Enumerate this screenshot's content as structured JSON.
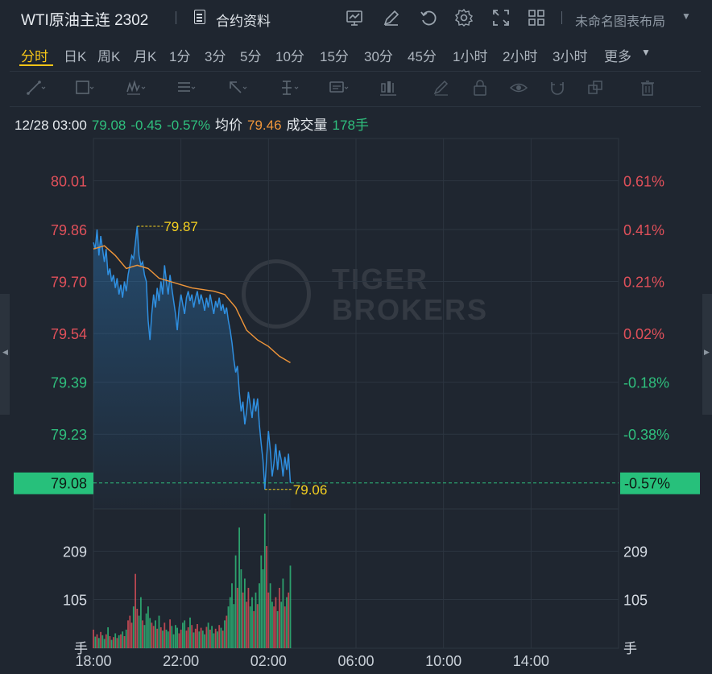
{
  "header": {
    "title": "WTI原油主连 2302",
    "contract_info_label": "合约资料",
    "layout_label": "未命名图表布局"
  },
  "timeframes": [
    "分时",
    "日K",
    "周K",
    "月K",
    "1分",
    "3分",
    "5分",
    "10分",
    "15分",
    "30分",
    "45分",
    "1小时",
    "2小时",
    "3小时",
    "更多"
  ],
  "active_timeframe": "分时",
  "info": {
    "datetime": "12/28 03:00",
    "price": "79.08",
    "change": "-0.45",
    "change_pct": "-0.57%",
    "avg_label": "均价",
    "avg_value": "79.46",
    "volume_label": "成交量",
    "volume_value": "178手"
  },
  "watermark": {
    "line1": "TIGER",
    "line2": "BROKERS"
  },
  "colors": {
    "up": "#e0505a",
    "down": "#2fbf7d",
    "price_line": "#2f8fe0",
    "avg_line": "#f0963a",
    "highlight": "#f5d020",
    "background": "#1f2630",
    "grid": "#2c3540"
  },
  "chart_data": {
    "type": "line",
    "x_ticks": [
      "18:00",
      "22:00",
      "02:00",
      "06:00",
      "10:00",
      "14:00"
    ],
    "y_left_ticks": [
      "80.01",
      "79.86",
      "79.70",
      "79.54",
      "79.39",
      "79.23"
    ],
    "y_right_ticks": [
      "0.61%",
      "0.41%",
      "0.21%",
      "0.02%",
      "-0.18%",
      "-0.38%"
    ],
    "ylim": [
      79.0,
      80.14
    ],
    "prev_close": 79.53,
    "current_label": "79.08",
    "current_pct_label": "-0.57%",
    "high_label": "79.87",
    "low_label": "79.06",
    "volume_ticks": [
      "209",
      "105"
    ],
    "volume_unit": "手",
    "volume_max": 300,
    "price_series": [
      [
        "18:00",
        79.82
      ],
      [
        "18:05",
        79.8
      ],
      [
        "18:10",
        79.86
      ],
      [
        "18:15",
        79.78
      ],
      [
        "18:20",
        79.84
      ],
      [
        "18:25",
        79.8
      ],
      [
        "18:30",
        79.76
      ],
      [
        "18:35",
        79.8
      ],
      [
        "18:40",
        79.72
      ],
      [
        "18:45",
        79.74
      ],
      [
        "18:50",
        79.7
      ],
      [
        "18:55",
        79.72
      ],
      [
        "19:00",
        79.68
      ],
      [
        "19:05",
        79.71
      ],
      [
        "19:10",
        79.66
      ],
      [
        "19:15",
        79.69
      ],
      [
        "19:20",
        79.65
      ],
      [
        "19:25",
        79.7
      ],
      [
        "19:30",
        79.67
      ],
      [
        "19:35",
        79.72
      ],
      [
        "19:40",
        79.75
      ],
      [
        "19:45",
        79.78
      ],
      [
        "19:50",
        79.77
      ],
      [
        "19:55",
        79.82
      ],
      [
        "20:00",
        79.87
      ],
      [
        "20:05",
        79.78
      ],
      [
        "20:10",
        79.75
      ],
      [
        "20:15",
        79.76
      ],
      [
        "20:20",
        79.72
      ],
      [
        "20:25",
        79.7
      ],
      [
        "20:30",
        79.58
      ],
      [
        "20:35",
        79.52
      ],
      [
        "20:40",
        79.6
      ],
      [
        "20:45",
        79.66
      ],
      [
        "20:50",
        79.62
      ],
      [
        "20:55",
        79.68
      ],
      [
        "21:00",
        79.64
      ],
      [
        "21:05",
        79.7
      ],
      [
        "21:10",
        79.66
      ],
      [
        "21:15",
        79.75
      ],
      [
        "21:20",
        79.7
      ],
      [
        "21:25",
        79.66
      ],
      [
        "21:30",
        79.72
      ],
      [
        "21:35",
        79.68
      ],
      [
        "21:40",
        79.64
      ],
      [
        "21:45",
        79.6
      ],
      [
        "21:50",
        79.55
      ],
      [
        "21:55",
        79.62
      ],
      [
        "22:00",
        79.66
      ],
      [
        "22:05",
        79.63
      ],
      [
        "22:10",
        79.6
      ],
      [
        "22:15",
        79.65
      ],
      [
        "22:20",
        79.67
      ],
      [
        "22:25",
        79.64
      ],
      [
        "22:30",
        79.66
      ],
      [
        "22:35",
        79.62
      ],
      [
        "22:40",
        79.65
      ],
      [
        "22:45",
        79.67
      ],
      [
        "22:50",
        79.63
      ],
      [
        "22:55",
        79.66
      ],
      [
        "23:00",
        79.64
      ],
      [
        "23:05",
        79.61
      ],
      [
        "23:10",
        79.65
      ],
      [
        "23:15",
        79.62
      ],
      [
        "23:20",
        79.66
      ],
      [
        "23:25",
        79.63
      ],
      [
        "23:30",
        79.6
      ],
      [
        "23:35",
        79.64
      ],
      [
        "23:40",
        79.62
      ],
      [
        "23:45",
        79.65
      ],
      [
        "23:50",
        79.61
      ],
      [
        "23:55",
        79.63
      ],
      [
        "00:00",
        79.6
      ],
      [
        "00:05",
        79.62
      ],
      [
        "00:10",
        79.58
      ],
      [
        "00:15",
        79.55
      ],
      [
        "00:20",
        79.51
      ],
      [
        "00:25",
        79.46
      ],
      [
        "00:30",
        79.42
      ],
      [
        "00:35",
        79.44
      ],
      [
        "00:40",
        79.36
      ],
      [
        "00:45",
        79.3
      ],
      [
        "00:50",
        79.33
      ],
      [
        "00:55",
        79.26
      ],
      [
        "01:00",
        79.3
      ],
      [
        "01:05",
        79.36
      ],
      [
        "01:10",
        79.32
      ],
      [
        "01:15",
        79.28
      ],
      [
        "01:20",
        79.34
      ],
      [
        "01:25",
        79.3
      ],
      [
        "01:30",
        79.34
      ],
      [
        "01:35",
        79.26
      ],
      [
        "01:40",
        79.2
      ],
      [
        "01:45",
        79.15
      ],
      [
        "01:50",
        79.06
      ],
      [
        "01:55",
        79.16
      ],
      [
        "02:00",
        79.24
      ],
      [
        "02:05",
        79.18
      ],
      [
        "02:10",
        79.1
      ],
      [
        "02:15",
        79.14
      ],
      [
        "02:20",
        79.2
      ],
      [
        "02:25",
        79.12
      ],
      [
        "02:30",
        79.18
      ],
      [
        "02:35",
        79.15
      ],
      [
        "02:40",
        79.1
      ],
      [
        "02:45",
        79.16
      ],
      [
        "02:50",
        79.12
      ],
      [
        "02:55",
        79.17
      ],
      [
        "03:00",
        79.08
      ]
    ],
    "avg_series": [
      [
        "18:00",
        79.8
      ],
      [
        "18:30",
        79.81
      ],
      [
        "19:00",
        79.78
      ],
      [
        "19:30",
        79.74
      ],
      [
        "20:00",
        79.75
      ],
      [
        "20:30",
        79.74
      ],
      [
        "21:00",
        79.71
      ],
      [
        "21:30",
        79.7
      ],
      [
        "22:00",
        79.69
      ],
      [
        "22:30",
        79.68
      ],
      [
        "23:00",
        79.675
      ],
      [
        "23:30",
        79.67
      ],
      [
        "00:00",
        79.66
      ],
      [
        "00:30",
        79.62
      ],
      [
        "01:00",
        79.55
      ],
      [
        "01:30",
        79.52
      ],
      [
        "02:00",
        79.5
      ],
      [
        "02:30",
        79.47
      ],
      [
        "03:00",
        79.45
      ]
    ],
    "volume_series": [
      [
        "18:00",
        40
      ],
      [
        "18:05",
        25
      ],
      [
        "18:10",
        30
      ],
      [
        "18:15",
        22
      ],
      [
        "18:20",
        35
      ],
      [
        "18:25",
        28
      ],
      [
        "18:30",
        20
      ],
      [
        "18:35",
        30
      ],
      [
        "18:40",
        45
      ],
      [
        "18:45",
        26
      ],
      [
        "18:50",
        18
      ],
      [
        "18:55",
        24
      ],
      [
        "19:00",
        32
      ],
      [
        "19:05",
        22
      ],
      [
        "19:10",
        28
      ],
      [
        "19:15",
        30
      ],
      [
        "19:20",
        36
      ],
      [
        "19:25",
        26
      ],
      [
        "19:30",
        40
      ],
      [
        "19:35",
        60
      ],
      [
        "19:40",
        70
      ],
      [
        "19:45",
        55
      ],
      [
        "19:50",
        90
      ],
      [
        "19:55",
        160
      ],
      [
        "20:00",
        85
      ],
      [
        "20:05",
        70
      ],
      [
        "20:10",
        110
      ],
      [
        "20:15",
        60
      ],
      [
        "20:20",
        50
      ],
      [
        "20:25",
        75
      ],
      [
        "20:30",
        90
      ],
      [
        "20:35",
        65
      ],
      [
        "20:40",
        55
      ],
      [
        "20:45",
        48
      ],
      [
        "20:50",
        60
      ],
      [
        "20:55",
        42
      ],
      [
        "21:00",
        70
      ],
      [
        "21:05",
        45
      ],
      [
        "21:10",
        38
      ],
      [
        "21:15",
        55
      ],
      [
        "21:20",
        40
      ],
      [
        "21:25",
        36
      ],
      [
        "21:30",
        62
      ],
      [
        "21:35",
        48
      ],
      [
        "21:40",
        30
      ],
      [
        "21:45",
        50
      ],
      [
        "21:50",
        44
      ],
      [
        "21:55",
        32
      ],
      [
        "22:00",
        40
      ],
      [
        "22:05",
        55
      ],
      [
        "22:10",
        60
      ],
      [
        "22:15",
        38
      ],
      [
        "22:20",
        45
      ],
      [
        "22:25",
        66
      ],
      [
        "22:30",
        50
      ],
      [
        "22:35",
        34
      ],
      [
        "22:40",
        42
      ],
      [
        "22:45",
        52
      ],
      [
        "22:50",
        36
      ],
      [
        "22:55",
        44
      ],
      [
        "23:00",
        38
      ],
      [
        "23:05",
        30
      ],
      [
        "23:10",
        46
      ],
      [
        "23:15",
        55
      ],
      [
        "23:20",
        40
      ],
      [
        "23:25",
        48
      ],
      [
        "23:30",
        32
      ],
      [
        "23:35",
        42
      ],
      [
        "23:40",
        36
      ],
      [
        "23:45",
        50
      ],
      [
        "23:50",
        44
      ],
      [
        "23:55",
        38
      ],
      [
        "00:00",
        60
      ],
      [
        "00:05",
        70
      ],
      [
        "00:10",
        90
      ],
      [
        "00:15",
        110
      ],
      [
        "00:20",
        140
      ],
      [
        "00:25",
        95
      ],
      [
        "00:30",
        200
      ],
      [
        "00:35",
        130
      ],
      [
        "00:40",
        260
      ],
      [
        "00:45",
        170
      ],
      [
        "00:50",
        120
      ],
      [
        "00:55",
        150
      ],
      [
        "01:00",
        100
      ],
      [
        "01:05",
        130
      ],
      [
        "01:10",
        90
      ],
      [
        "01:15",
        110
      ],
      [
        "01:20",
        80
      ],
      [
        "01:25",
        120
      ],
      [
        "01:30",
        95
      ],
      [
        "01:35",
        140
      ],
      [
        "01:40",
        200
      ],
      [
        "01:45",
        170
      ],
      [
        "01:50",
        290
      ],
      [
        "01:55",
        220
      ],
      [
        "02:00",
        120
      ],
      [
        "02:05",
        140
      ],
      [
        "02:10",
        100
      ],
      [
        "02:15",
        90
      ],
      [
        "02:20",
        110
      ],
      [
        "02:25",
        80
      ],
      [
        "02:30",
        130
      ],
      [
        "02:35",
        100
      ],
      [
        "02:40",
        150
      ],
      [
        "02:45",
        90
      ],
      [
        "02:50",
        110
      ],
      [
        "02:55",
        120
      ],
      [
        "03:00",
        178
      ]
    ]
  }
}
